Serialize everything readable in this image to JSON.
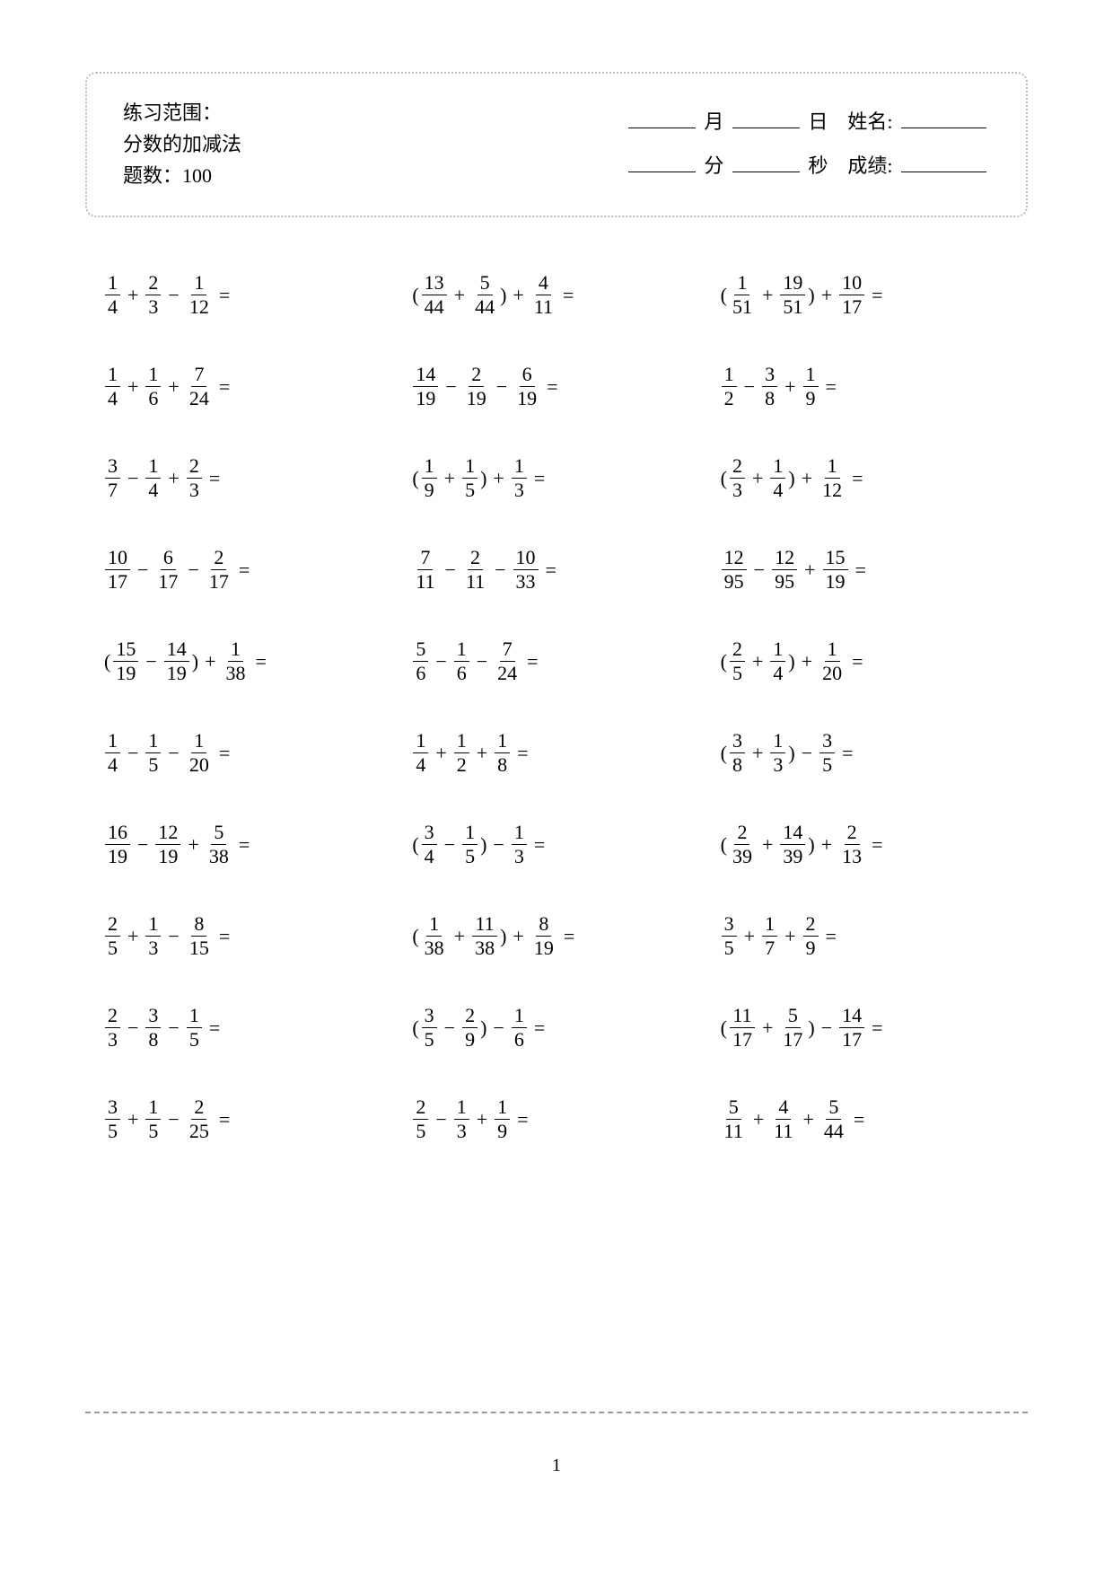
{
  "header": {
    "scope_label": "练习范围：",
    "scope_value": "分数的加减法",
    "count_label": "题数：",
    "count_value": "100",
    "month_label": "月",
    "day_label": "日",
    "name_label": "姓名:",
    "minute_label": "分",
    "second_label": "秒",
    "score_label": "成绩:"
  },
  "page_number": "1",
  "problems": [
    {
      "type": "plain",
      "terms": [
        {
          "n": "1",
          "d": "4"
        },
        {
          "op": "+",
          "n": "2",
          "d": "3"
        },
        {
          "op": "−",
          "n": "1",
          "d": "12"
        }
      ]
    },
    {
      "type": "paren_first",
      "terms": [
        {
          "n": "13",
          "d": "44"
        },
        {
          "op": "+",
          "n": "5",
          "d": "44"
        }
      ],
      "after": {
        "op": "+",
        "n": "4",
        "d": "11"
      }
    },
    {
      "type": "paren_first",
      "terms": [
        {
          "n": "1",
          "d": "51"
        },
        {
          "op": "+",
          "n": "19",
          "d": "51"
        }
      ],
      "after": {
        "op": "+",
        "n": "10",
        "d": "17"
      }
    },
    {
      "type": "plain",
      "terms": [
        {
          "n": "1",
          "d": "4"
        },
        {
          "op": "+",
          "n": "1",
          "d": "6"
        },
        {
          "op": "+",
          "n": "7",
          "d": "24"
        }
      ]
    },
    {
      "type": "plain",
      "terms": [
        {
          "n": "14",
          "d": "19"
        },
        {
          "op": "−",
          "n": "2",
          "d": "19"
        },
        {
          "op": "−",
          "n": "6",
          "d": "19"
        }
      ]
    },
    {
      "type": "plain",
      "terms": [
        {
          "n": "1",
          "d": "2"
        },
        {
          "op": "−",
          "n": "3",
          "d": "8"
        },
        {
          "op": "+",
          "n": "1",
          "d": "9"
        }
      ]
    },
    {
      "type": "plain",
      "terms": [
        {
          "n": "3",
          "d": "7"
        },
        {
          "op": "−",
          "n": "1",
          "d": "4"
        },
        {
          "op": "+",
          "n": "2",
          "d": "3"
        }
      ]
    },
    {
      "type": "paren_first",
      "terms": [
        {
          "n": "1",
          "d": "9"
        },
        {
          "op": "+",
          "n": "1",
          "d": "5"
        }
      ],
      "after": {
        "op": "+",
        "n": "1",
        "d": "3"
      }
    },
    {
      "type": "paren_first",
      "terms": [
        {
          "n": "2",
          "d": "3"
        },
        {
          "op": "+",
          "n": "1",
          "d": "4"
        }
      ],
      "after": {
        "op": "+",
        "n": "1",
        "d": "12"
      }
    },
    {
      "type": "plain",
      "terms": [
        {
          "n": "10",
          "d": "17"
        },
        {
          "op": "−",
          "n": "6",
          "d": "17"
        },
        {
          "op": "−",
          "n": "2",
          "d": "17"
        }
      ]
    },
    {
      "type": "plain",
      "terms": [
        {
          "n": "7",
          "d": "11"
        },
        {
          "op": "−",
          "n": "2",
          "d": "11"
        },
        {
          "op": "−",
          "n": "10",
          "d": "33"
        }
      ]
    },
    {
      "type": "plain",
      "terms": [
        {
          "n": "12",
          "d": "95"
        },
        {
          "op": "−",
          "n": "12",
          "d": "95"
        },
        {
          "op": "+",
          "n": "15",
          "d": "19"
        }
      ]
    },
    {
      "type": "paren_first",
      "terms": [
        {
          "n": "15",
          "d": "19"
        },
        {
          "op": "−",
          "n": "14",
          "d": "19"
        }
      ],
      "after": {
        "op": "+",
        "n": "1",
        "d": "38"
      }
    },
    {
      "type": "plain",
      "terms": [
        {
          "n": "5",
          "d": "6"
        },
        {
          "op": "−",
          "n": "1",
          "d": "6"
        },
        {
          "op": "−",
          "n": "7",
          "d": "24"
        }
      ]
    },
    {
      "type": "paren_first",
      "terms": [
        {
          "n": "2",
          "d": "5"
        },
        {
          "op": "+",
          "n": "1",
          "d": "4"
        }
      ],
      "after": {
        "op": "+",
        "n": "1",
        "d": "20"
      }
    },
    {
      "type": "plain",
      "terms": [
        {
          "n": "1",
          "d": "4"
        },
        {
          "op": "−",
          "n": "1",
          "d": "5"
        },
        {
          "op": "−",
          "n": "1",
          "d": "20"
        }
      ]
    },
    {
      "type": "plain",
      "terms": [
        {
          "n": "1",
          "d": "4"
        },
        {
          "op": "+",
          "n": "1",
          "d": "2"
        },
        {
          "op": "+",
          "n": "1",
          "d": "8"
        }
      ]
    },
    {
      "type": "paren_first",
      "terms": [
        {
          "n": "3",
          "d": "8"
        },
        {
          "op": "+",
          "n": "1",
          "d": "3"
        }
      ],
      "after": {
        "op": "−",
        "n": "3",
        "d": "5"
      }
    },
    {
      "type": "plain",
      "terms": [
        {
          "n": "16",
          "d": "19"
        },
        {
          "op": "−",
          "n": "12",
          "d": "19"
        },
        {
          "op": "+",
          "n": "5",
          "d": "38"
        }
      ]
    },
    {
      "type": "paren_first",
      "terms": [
        {
          "n": "3",
          "d": "4"
        },
        {
          "op": "−",
          "n": "1",
          "d": "5"
        }
      ],
      "after": {
        "op": "−",
        "n": "1",
        "d": "3"
      }
    },
    {
      "type": "paren_first",
      "terms": [
        {
          "n": "2",
          "d": "39"
        },
        {
          "op": "+",
          "n": "14",
          "d": "39"
        }
      ],
      "after": {
        "op": "+",
        "n": "2",
        "d": "13"
      }
    },
    {
      "type": "plain",
      "terms": [
        {
          "n": "2",
          "d": "5"
        },
        {
          "op": "+",
          "n": "1",
          "d": "3"
        },
        {
          "op": "−",
          "n": "8",
          "d": "15"
        }
      ]
    },
    {
      "type": "paren_first",
      "terms": [
        {
          "n": "1",
          "d": "38"
        },
        {
          "op": "+",
          "n": "11",
          "d": "38"
        }
      ],
      "after": {
        "op": "+",
        "n": "8",
        "d": "19"
      }
    },
    {
      "type": "plain",
      "terms": [
        {
          "n": "3",
          "d": "5"
        },
        {
          "op": "+",
          "n": "1",
          "d": "7"
        },
        {
          "op": "+",
          "n": "2",
          "d": "9"
        }
      ]
    },
    {
      "type": "plain",
      "terms": [
        {
          "n": "2",
          "d": "3"
        },
        {
          "op": "−",
          "n": "3",
          "d": "8"
        },
        {
          "op": "−",
          "n": "1",
          "d": "5"
        }
      ]
    },
    {
      "type": "paren_first",
      "terms": [
        {
          "n": "3",
          "d": "5"
        },
        {
          "op": "−",
          "n": "2",
          "d": "9"
        }
      ],
      "after": {
        "op": "−",
        "n": "1",
        "d": "6"
      }
    },
    {
      "type": "paren_first",
      "terms": [
        {
          "n": "11",
          "d": "17"
        },
        {
          "op": "+",
          "n": "5",
          "d": "17"
        }
      ],
      "after": {
        "op": "−",
        "n": "14",
        "d": "17"
      }
    },
    {
      "type": "plain",
      "terms": [
        {
          "n": "3",
          "d": "5"
        },
        {
          "op": "+",
          "n": "1",
          "d": "5"
        },
        {
          "op": "−",
          "n": "2",
          "d": "25"
        }
      ]
    },
    {
      "type": "plain",
      "terms": [
        {
          "n": "2",
          "d": "5"
        },
        {
          "op": "−",
          "n": "1",
          "d": "3"
        },
        {
          "op": "+",
          "n": "1",
          "d": "9"
        }
      ]
    },
    {
      "type": "plain",
      "terms": [
        {
          "n": "5",
          "d": "11"
        },
        {
          "op": "+",
          "n": "4",
          "d": "11"
        },
        {
          "op": "+",
          "n": "5",
          "d": "44"
        }
      ]
    }
  ]
}
